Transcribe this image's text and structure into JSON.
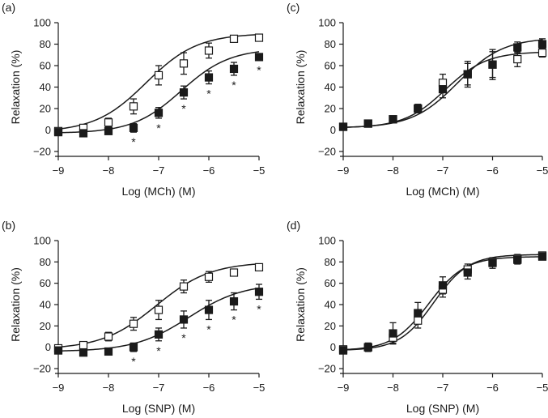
{
  "figure": {
    "caption": ""
  },
  "chart_data": [
    {
      "id": "a",
      "panel_label": "(a)",
      "type": "scatter",
      "xlabel": "Log (MCh) (M)",
      "ylabel": "Relaxation (%)",
      "xlim": [
        -9,
        -5
      ],
      "ylim": [
        -20,
        100
      ],
      "xticks": [
        -9,
        -8,
        -7,
        -6,
        -5
      ],
      "xtick_labels": [
        "−9",
        "−8",
        "−7",
        "−6",
        "−5"
      ],
      "yticks": [
        -20,
        0,
        20,
        40,
        60,
        80,
        100
      ],
      "ytick_labels": [
        "−20",
        "0",
        "20",
        "40",
        "60",
        "80",
        "100"
      ],
      "x": [
        -9,
        -8.5,
        -8,
        -7.5,
        -7,
        -6.5,
        -6,
        -5.5,
        -5
      ],
      "series": [
        {
          "name": "open squares",
          "marker": "open-square",
          "values": [
            -1,
            2,
            7,
            22,
            51,
            62,
            74,
            85,
            86
          ],
          "errors": [
            3,
            3,
            4,
            7,
            9,
            10,
            7,
            3,
            2
          ],
          "fit": {
            "bottom": -2,
            "top": 90,
            "logEC50": -7.25,
            "hill": 0.85
          }
        },
        {
          "name": "filled squares",
          "marker": "filled-square",
          "values": [
            -2,
            -3,
            -1,
            2,
            16,
            35,
            49,
            57,
            68
          ],
          "errors": [
            2,
            2,
            3,
            4,
            5,
            6,
            6,
            6,
            3
          ],
          "fit": {
            "bottom": -3,
            "top": 76,
            "logEC50": -6.55,
            "hill": 0.9
          }
        }
      ],
      "annotations": {
        "text": "*",
        "x": [
          -7.5,
          -7,
          -6.5,
          -6,
          -5.5,
          -5
        ]
      }
    },
    {
      "id": "b",
      "panel_label": "(b)",
      "type": "scatter",
      "xlabel": "Log (SNP) (M)",
      "ylabel": "Relaxation (%)",
      "xlim": [
        -9,
        -5
      ],
      "ylim": [
        -20,
        100
      ],
      "xticks": [
        -9,
        -8,
        -7,
        -6,
        -5
      ],
      "xtick_labels": [
        "−9",
        "−8",
        "−7",
        "−6",
        "−5"
      ],
      "yticks": [
        -20,
        0,
        20,
        40,
        60,
        80,
        100
      ],
      "ytick_labels": [
        "−20",
        "0",
        "20",
        "40",
        "60",
        "80",
        "100"
      ],
      "x": [
        -9,
        -8.5,
        -8,
        -7.5,
        -7,
        -6.5,
        -6,
        -5.5,
        -5
      ],
      "series": [
        {
          "name": "open squares",
          "marker": "open-square",
          "values": [
            -1,
            2,
            10,
            22,
            35,
            57,
            66,
            70,
            75
          ],
          "errors": [
            3,
            3,
            4,
            6,
            9,
            6,
            5,
            3,
            3
          ],
          "fit": {
            "bottom": -2,
            "top": 80,
            "logEC50": -7.05,
            "hill": 0.8
          }
        },
        {
          "name": "filled squares",
          "marker": "filled-square",
          "values": [
            -3,
            -5,
            -4,
            0,
            12,
            26,
            35,
            43,
            52
          ],
          "errors": [
            2,
            2,
            2,
            4,
            6,
            8,
            9,
            8,
            7
          ],
          "fit": {
            "bottom": -4,
            "top": 60,
            "logEC50": -6.4,
            "hill": 0.8
          }
        }
      ],
      "annotations": {
        "text": "*",
        "x": [
          -7.5,
          -7,
          -6.5,
          -6,
          -5.5,
          -5
        ]
      }
    },
    {
      "id": "c",
      "panel_label": "(c)",
      "type": "scatter",
      "xlabel": "Log (MCh) (M)",
      "ylabel": "Relaxation (%)",
      "xlim": [
        -9,
        -5
      ],
      "ylim": [
        -20,
        100
      ],
      "xticks": [
        -9,
        -8,
        -7,
        -6,
        -5
      ],
      "xtick_labels": [
        "−9",
        "−8",
        "−7",
        "−6",
        "−5"
      ],
      "yticks": [
        -20,
        0,
        20,
        40,
        60,
        80,
        100
      ],
      "ytick_labels": [
        "−20",
        "0",
        "20",
        "40",
        "60",
        "80",
        "100"
      ],
      "x": [
        -9,
        -8.5,
        -8,
        -7.5,
        -7,
        -6.5,
        -6,
        -5.5,
        -5
      ],
      "series": [
        {
          "name": "open squares",
          "marker": "open-square",
          "values": [
            3,
            6,
            10,
            20,
            44,
            52,
            61,
            66,
            72
          ],
          "errors": [
            2,
            2,
            3,
            4,
            8,
            12,
            14,
            7,
            4
          ],
          "fit": {
            "bottom": 2,
            "top": 73,
            "logEC50": -6.95,
            "hill": 1.05
          }
        },
        {
          "name": "filled squares",
          "marker": "filled-square",
          "values": [
            3,
            6,
            10,
            20,
            38,
            52,
            61,
            77,
            80
          ],
          "errors": [
            2,
            2,
            3,
            3,
            8,
            10,
            12,
            5,
            5
          ],
          "fit": {
            "bottom": 2,
            "top": 86,
            "logEC50": -6.7,
            "hill": 0.95
          }
        }
      ],
      "annotations": {
        "text": "",
        "x": []
      }
    },
    {
      "id": "d",
      "panel_label": "(d)",
      "type": "scatter",
      "xlabel": "Log (SNP) (M)",
      "ylabel": "Relaxation (%)",
      "xlim": [
        -9,
        -5
      ],
      "ylim": [
        -20,
        100
      ],
      "xticks": [
        -9,
        -8,
        -7,
        -6,
        -5
      ],
      "xtick_labels": [
        "−9",
        "−8",
        "−7",
        "−6",
        "−5"
      ],
      "yticks": [
        -20,
        0,
        20,
        40,
        60,
        80,
        100
      ],
      "ytick_labels": [
        "−20",
        "0",
        "20",
        "40",
        "60",
        "80",
        "100"
      ],
      "x": [
        -9,
        -8.5,
        -8,
        -7.5,
        -7,
        -6.5,
        -6,
        -5.5,
        -5
      ],
      "series": [
        {
          "name": "open squares",
          "marker": "open-square",
          "values": [
            -2,
            0,
            9,
            25,
            54,
            73,
            80,
            83,
            86
          ],
          "errors": [
            3,
            4,
            5,
            7,
            7,
            5,
            3,
            4,
            3
          ],
          "fit": {
            "bottom": -3,
            "top": 87,
            "logEC50": -7.18,
            "hill": 1.25
          }
        },
        {
          "name": "filled squares",
          "marker": "filled-square",
          "values": [
            -3,
            0,
            13,
            32,
            58,
            70,
            79,
            82,
            85
          ],
          "errors": [
            2,
            3,
            10,
            10,
            8,
            6,
            5,
            4,
            3
          ],
          "fit": {
            "bottom": -3,
            "top": 85,
            "logEC50": -7.28,
            "hill": 1.2
          }
        }
      ],
      "annotations": {
        "text": "",
        "x": []
      }
    }
  ]
}
